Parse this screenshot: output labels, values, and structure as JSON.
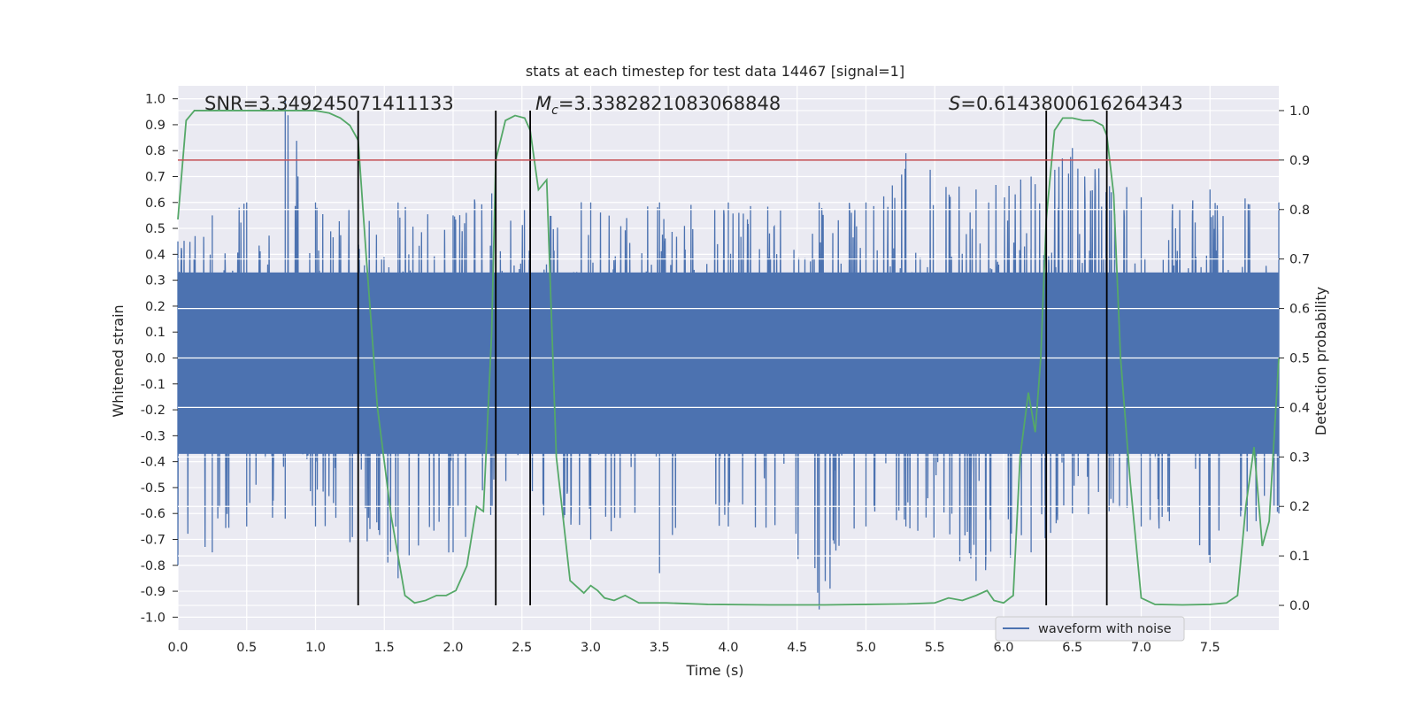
{
  "chart_data": {
    "type": "line",
    "title": "stats at each timestep for test data 14467 [signal=1]",
    "xlabel": "Time (s)",
    "ylabel": "Whitened strain",
    "y2label": "Detection probability",
    "xlim": [
      0.0,
      8.0
    ],
    "ylim": [
      -1.05,
      1.05
    ],
    "y2lim": [
      -0.05,
      1.05
    ],
    "x_ticks": [
      "0.0",
      "0.5",
      "1.0",
      "1.5",
      "2.0",
      "2.5",
      "3.0",
      "3.5",
      "4.0",
      "4.5",
      "5.0",
      "5.5",
      "6.0",
      "6.5",
      "7.0",
      "7.5"
    ],
    "y_ticks": [
      "1.0",
      "0.9",
      "0.8",
      "0.7",
      "0.6",
      "0.5",
      "0.4",
      "0.3",
      "0.2",
      "0.1",
      "0.0",
      "-0.1",
      "-0.2",
      "-0.3",
      "-0.4",
      "-0.5",
      "-0.6",
      "-0.7",
      "-0.8",
      "-0.9",
      "-1.0"
    ],
    "y2_ticks": [
      "1.0",
      "0.9",
      "0.8",
      "0.7",
      "0.6",
      "0.5",
      "0.4",
      "0.3",
      "0.2",
      "0.1",
      "0.0"
    ],
    "grid": true,
    "legend": {
      "placement": "lower-right",
      "entries": [
        "waveform with noise"
      ]
    },
    "annotations": {
      "snr": "SNR=3.349245071411133",
      "mc_symbol": "M",
      "mc_sub": "c",
      "mc_value": "=3.3382821083068848",
      "s_symbol": "S",
      "s_value": "=0.6143800616264343"
    },
    "threshold": {
      "y2": 0.9,
      "color": "#c44e52"
    },
    "vertical_lines": [
      1.31,
      2.31,
      2.56,
      6.31,
      6.75
    ],
    "series": [
      {
        "name": "waveform with noise",
        "axis": "left",
        "color": "#4c72b0",
        "envelope": {
          "x": [
            0.0,
            0.25,
            0.5,
            0.78,
            1.0,
            1.31,
            1.6,
            2.0,
            2.31,
            2.56,
            3.0,
            3.5,
            4.0,
            4.66,
            5.0,
            5.29,
            5.8,
            6.2,
            6.5,
            7.0,
            7.5,
            8.0
          ],
          "upper": [
            0.45,
            0.55,
            0.6,
            1.0,
            0.6,
            0.6,
            0.6,
            0.55,
            0.7,
            0.65,
            0.6,
            0.6,
            0.6,
            0.6,
            0.6,
            0.79,
            0.65,
            0.7,
            0.81,
            0.62,
            0.65,
            0.6
          ],
          "lower": [
            -0.8,
            -0.75,
            -0.65,
            -0.62,
            -0.65,
            -0.74,
            -0.85,
            -0.75,
            -0.6,
            -0.62,
            -0.7,
            -0.83,
            -0.65,
            -0.97,
            -0.65,
            -0.65,
            -0.86,
            -0.75,
            -0.6,
            -0.65,
            -0.79,
            -0.6
          ]
        }
      },
      {
        "name": "",
        "axis": "right",
        "color": "#55a868",
        "x": [
          0.0,
          0.06,
          0.12,
          0.2,
          0.3,
          0.5,
          0.8,
          1.0,
          1.1,
          1.18,
          1.25,
          1.31,
          1.37,
          1.45,
          1.55,
          1.65,
          1.72,
          1.8,
          1.88,
          1.95,
          2.02,
          2.1,
          2.17,
          2.22,
          2.28,
          2.31,
          2.38,
          2.45,
          2.52,
          2.56,
          2.62,
          2.68,
          2.75,
          2.85,
          2.95,
          3.0,
          3.05,
          3.1,
          3.17,
          3.25,
          3.35,
          3.55,
          3.85,
          4.3,
          4.7,
          5.0,
          5.3,
          5.5,
          5.6,
          5.7,
          5.8,
          5.88,
          5.93,
          6.0,
          6.07,
          6.12,
          6.18,
          6.23,
          6.27,
          6.31,
          6.37,
          6.43,
          6.5,
          6.58,
          6.65,
          6.72,
          6.75,
          6.8,
          6.85,
          6.92,
          7.0,
          7.1,
          7.3,
          7.5,
          7.62,
          7.7,
          7.76,
          7.82,
          7.88,
          7.93,
          8.0
        ],
        "y": [
          0.78,
          0.98,
          1.0,
          1.0,
          1.0,
          1.0,
          1.0,
          1.0,
          0.995,
          0.985,
          0.97,
          0.94,
          0.7,
          0.4,
          0.18,
          0.02,
          0.005,
          0.01,
          0.02,
          0.02,
          0.03,
          0.08,
          0.2,
          0.19,
          0.55,
          0.9,
          0.98,
          0.99,
          0.985,
          0.96,
          0.84,
          0.86,
          0.3,
          0.05,
          0.025,
          0.04,
          0.03,
          0.015,
          0.01,
          0.02,
          0.005,
          0.005,
          0.002,
          0.001,
          0.001,
          0.002,
          0.003,
          0.005,
          0.015,
          0.01,
          0.02,
          0.03,
          0.01,
          0.005,
          0.02,
          0.3,
          0.43,
          0.35,
          0.5,
          0.78,
          0.96,
          0.985,
          0.985,
          0.98,
          0.98,
          0.97,
          0.95,
          0.83,
          0.5,
          0.25,
          0.015,
          0.002,
          0.001,
          0.002,
          0.005,
          0.02,
          0.2,
          0.32,
          0.12,
          0.17,
          0.5
        ]
      }
    ]
  }
}
